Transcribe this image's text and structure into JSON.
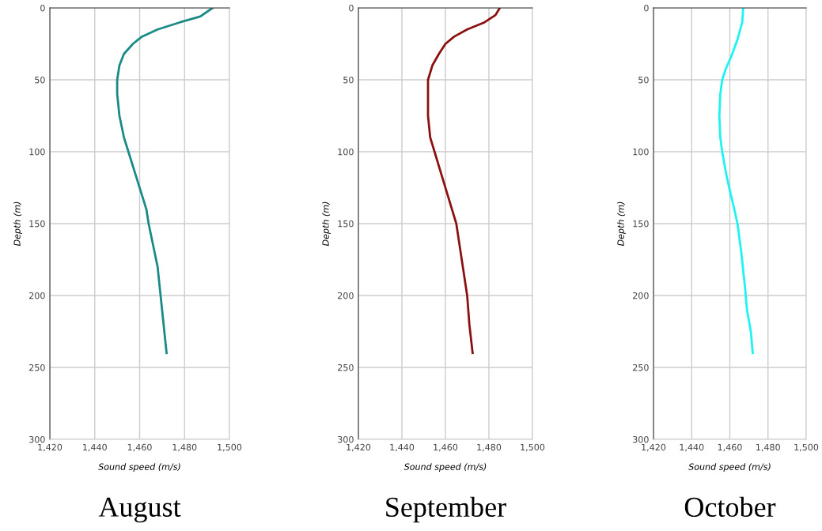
{
  "chart_data": [
    {
      "type": "line",
      "title": "August",
      "xlabel": "Sound speed (m/s)",
      "ylabel": "Depth (m)",
      "xlim": [
        1420,
        1500
      ],
      "xticks": [
        {
          "value": 1420,
          "label": "1,420"
        },
        {
          "value": 1440,
          "label": "1,440"
        },
        {
          "value": 1460,
          "label": "1,460"
        },
        {
          "value": 1480,
          "label": "1,480"
        },
        {
          "value": 1500,
          "label": "1,500"
        }
      ],
      "ylim": [
        300,
        0
      ],
      "yticks": [
        0,
        50,
        100,
        150,
        200,
        250,
        300
      ],
      "grid": true,
      "series": [
        {
          "color": "#1a8a86",
          "x": [
            1492.5,
            1487,
            1478,
            1468,
            1461,
            1457,
            1453,
            1451,
            1450,
            1450,
            1451,
            1453,
            1455,
            1458,
            1461,
            1463,
            1464,
            1466,
            1468,
            1469,
            1470,
            1471,
            1472
          ],
          "values": [
            0,
            6,
            10,
            15,
            20,
            25,
            32,
            40,
            50,
            60,
            75,
            90,
            100,
            115,
            130,
            140,
            150,
            165,
            180,
            195,
            210,
            225,
            240
          ]
        }
      ]
    },
    {
      "type": "line",
      "title": "September",
      "xlabel": "Sound speed (m/s)",
      "ylabel": "Depth (m)",
      "xlim": [
        1420,
        1500
      ],
      "xticks": [
        {
          "value": 1420,
          "label": "1,420"
        },
        {
          "value": 1440,
          "label": "1,440"
        },
        {
          "value": 1460,
          "label": "1,460"
        },
        {
          "value": 1480,
          "label": "1,480"
        },
        {
          "value": 1500,
          "label": "1,500"
        }
      ],
      "ylim": [
        300,
        0
      ],
      "yticks": [
        0,
        50,
        100,
        150,
        200,
        250,
        300
      ],
      "grid": true,
      "series": [
        {
          "color": "#8b1010",
          "x": [
            1485,
            1483,
            1478,
            1470,
            1464,
            1460,
            1457,
            1454,
            1452,
            1452,
            1452,
            1453,
            1455,
            1458,
            1461,
            1464,
            1465,
            1467,
            1469,
            1470,
            1471,
            1472.5
          ],
          "values": [
            0,
            5,
            10,
            15,
            20,
            25,
            32,
            40,
            50,
            60,
            75,
            90,
            100,
            115,
            130,
            145,
            150,
            170,
            190,
            200,
            220,
            240
          ]
        }
      ]
    },
    {
      "type": "line",
      "title": "October",
      "xlabel": "Sound speed (m/s)",
      "ylabel": "Depth (m)",
      "xlim": [
        1420,
        1500
      ],
      "xticks": [
        {
          "value": 1420,
          "label": "1,420"
        },
        {
          "value": 1440,
          "label": "1,440"
        },
        {
          "value": 1460,
          "label": "1,460"
        },
        {
          "value": 1480,
          "label": "1,480"
        },
        {
          "value": 1500,
          "label": "1,500"
        }
      ],
      "ylim": [
        300,
        0
      ],
      "yticks": [
        0,
        50,
        100,
        150,
        200,
        250,
        300
      ],
      "grid": true,
      "series": [
        {
          "color": "#1ef2f2",
          "x": [
            1467,
            1466.5,
            1464,
            1461,
            1458,
            1456,
            1455,
            1454.5,
            1455,
            1456,
            1458,
            1460,
            1462,
            1464,
            1466,
            1468,
            1469,
            1471,
            1472
          ],
          "values": [
            0,
            10,
            22,
            33,
            42,
            50,
            60,
            75,
            90,
            100,
            115,
            127,
            138,
            150,
            170,
            195,
            210,
            225,
            240
          ]
        }
      ]
    }
  ]
}
